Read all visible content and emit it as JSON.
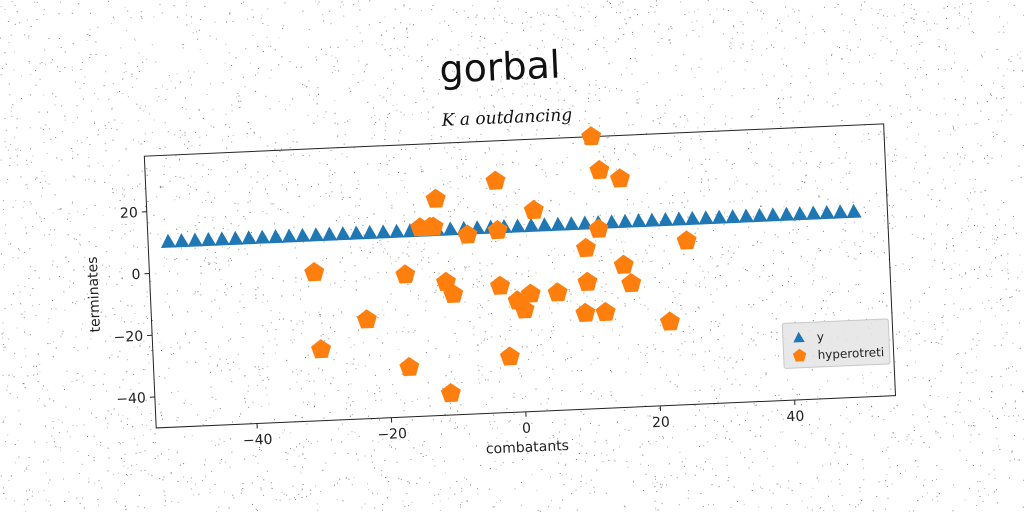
{
  "chart_data": {
    "type": "scatter",
    "title": "gorbal",
    "subtitle": "K a outdancing",
    "xlabel": "combatants",
    "ylabel": "terminates",
    "xlim": [
      -55,
      55
    ],
    "ylim": [
      -50,
      38
    ],
    "xticks": [
      -40,
      -20,
      0,
      20,
      40
    ],
    "yticks": [
      -40,
      -20,
      0,
      20
    ],
    "xtick_labels": [
      "−40",
      "−20",
      "0",
      "20",
      "40"
    ],
    "ytick_labels": [
      "−40",
      "−20",
      "0",
      "20"
    ],
    "grid": false,
    "legend_position": "bottom-right",
    "series": [
      {
        "name": "y",
        "marker": "triangle",
        "color": "#1f77b4",
        "x": [
          -52,
          -50,
          -48,
          -46,
          -44,
          -42,
          -40,
          -38,
          -36,
          -34,
          -32,
          -30,
          -28,
          -26,
          -24,
          -22,
          -20,
          -18,
          -16,
          -14,
          -12,
          -10,
          -8,
          -6,
          -4,
          -2,
          0,
          2,
          4,
          6,
          8,
          10,
          12,
          14,
          16,
          18,
          20,
          22,
          24,
          26,
          28,
          30,
          32,
          34,
          36,
          38,
          40,
          42,
          44,
          46,
          48,
          50
        ],
        "y": [
          10,
          10,
          10,
          10,
          10,
          10,
          10,
          10,
          10,
          10,
          10,
          10,
          10,
          10,
          10,
          10,
          10,
          10,
          10,
          10,
          10,
          10,
          10,
          10,
          10,
          10,
          10,
          10,
          10,
          10,
          10,
          10,
          10,
          10,
          10,
          10,
          10,
          10,
          10,
          10,
          10,
          10,
          10,
          10,
          10,
          10,
          10,
          10,
          10,
          10,
          10,
          10
        ]
      },
      {
        "name": "hyperotreti",
        "marker": "pentagon",
        "color": "#ff7f0e",
        "x": [
          11.5,
          12.5,
          15.5,
          -3,
          -12,
          2.5,
          -14.5,
          -13,
          -12.5,
          -7.5,
          -3,
          12,
          10,
          25,
          -30.5,
          -17,
          -11,
          -10,
          -3,
          15.5,
          10,
          16.5,
          5.5,
          1.5,
          -0.5,
          0.5,
          -23,
          9.5,
          12.5,
          22,
          -30,
          -2,
          -17,
          -11
        ],
        "y": [
          38,
          27,
          24,
          25,
          20,
          15,
          11,
          11,
          11,
          8,
          9,
          8,
          2,
          3,
          -2,
          -4,
          -7,
          -11,
          -9,
          -4,
          -9,
          -10,
          -12,
          -12,
          -14,
          -17,
          -18,
          -19,
          -19,
          -23,
          -27,
          -32,
          -34,
          -43
        ]
      }
    ]
  }
}
